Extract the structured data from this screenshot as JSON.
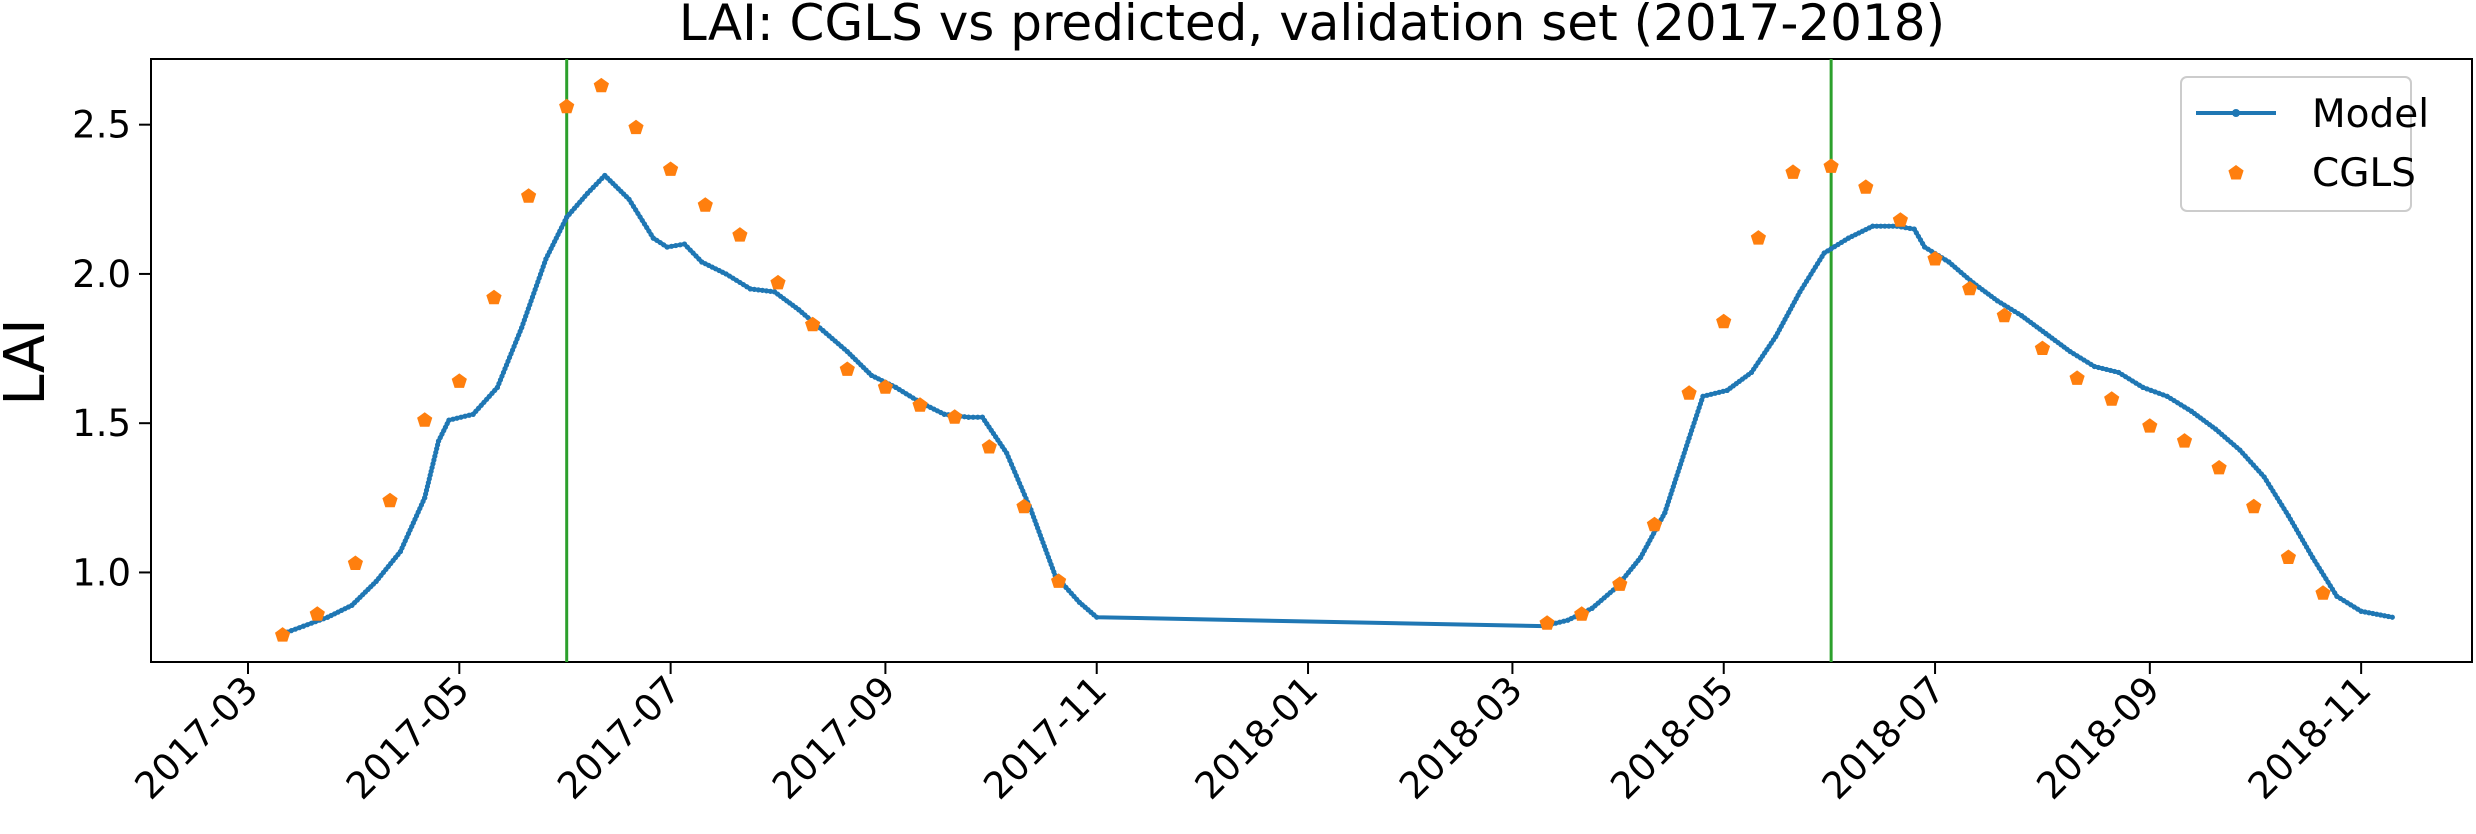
{
  "chart_data": {
    "type": "line",
    "title": "LAI: CGLS vs predicted, validation set (2017-2018)",
    "xlabel": "",
    "ylabel": "LAI",
    "xlim": [
      "2017-02-01",
      "2018-12-03"
    ],
    "ylim": [
      0.7,
      2.72
    ],
    "x_ticks": [
      "2017-03",
      "2017-05",
      "2017-07",
      "2017-09",
      "2017-11",
      "2018-01",
      "2018-03",
      "2018-05",
      "2018-07",
      "2018-09",
      "2018-11"
    ],
    "y_ticks": [
      "1.0",
      "1.5",
      "2.0",
      "2.5"
    ],
    "grid": false,
    "legend_position": "top-right",
    "vlines": {
      "color": "#2ca02c",
      "x": [
        "2017-06-01",
        "2018-06-01"
      ]
    },
    "series": [
      {
        "name": "Model",
        "style": "line-with-small-markers",
        "color": "#1f77b4",
        "points": [
          [
            "2017-03-10",
            0.79
          ],
          [
            "2017-03-17",
            0.82
          ],
          [
            "2017-03-24",
            0.85
          ],
          [
            "2017-03-31",
            0.89
          ],
          [
            "2017-04-07",
            0.97
          ],
          [
            "2017-04-14",
            1.07
          ],
          [
            "2017-04-21",
            1.25
          ],
          [
            "2017-04-25",
            1.44
          ],
          [
            "2017-04-28",
            1.51
          ],
          [
            "2017-05-05",
            1.53
          ],
          [
            "2017-05-12",
            1.62
          ],
          [
            "2017-05-19",
            1.82
          ],
          [
            "2017-05-26",
            2.05
          ],
          [
            "2017-06-01",
            2.19
          ],
          [
            "2017-06-07",
            2.27
          ],
          [
            "2017-06-12",
            2.33
          ],
          [
            "2017-06-19",
            2.25
          ],
          [
            "2017-06-26",
            2.12
          ],
          [
            "2017-06-30",
            2.09
          ],
          [
            "2017-07-05",
            2.1
          ],
          [
            "2017-07-10",
            2.04
          ],
          [
            "2017-07-17",
            2.0
          ],
          [
            "2017-07-24",
            1.95
          ],
          [
            "2017-07-31",
            1.94
          ],
          [
            "2017-08-07",
            1.88
          ],
          [
            "2017-08-14",
            1.81
          ],
          [
            "2017-08-21",
            1.74
          ],
          [
            "2017-08-28",
            1.66
          ],
          [
            "2017-09-04",
            1.62
          ],
          [
            "2017-09-11",
            1.57
          ],
          [
            "2017-09-18",
            1.53
          ],
          [
            "2017-09-25",
            1.52
          ],
          [
            "2017-09-29",
            1.52
          ],
          [
            "2017-10-06",
            1.4
          ],
          [
            "2017-10-13",
            1.21
          ],
          [
            "2017-10-20",
            0.99
          ],
          [
            "2017-10-27",
            0.9
          ],
          [
            "2017-11-01",
            0.85
          ],
          [
            "2018-03-10",
            0.82
          ],
          [
            "2018-03-17",
            0.84
          ],
          [
            "2018-03-24",
            0.88
          ],
          [
            "2018-03-31",
            0.95
          ],
          [
            "2018-04-07",
            1.05
          ],
          [
            "2018-04-14",
            1.2
          ],
          [
            "2018-04-21",
            1.45
          ],
          [
            "2018-04-25",
            1.59
          ],
          [
            "2018-05-02",
            1.61
          ],
          [
            "2018-05-09",
            1.67
          ],
          [
            "2018-05-16",
            1.79
          ],
          [
            "2018-05-23",
            1.94
          ],
          [
            "2018-05-30",
            2.07
          ],
          [
            "2018-06-06",
            2.12
          ],
          [
            "2018-06-13",
            2.16
          ],
          [
            "2018-06-20",
            2.16
          ],
          [
            "2018-06-25",
            2.15
          ],
          [
            "2018-06-28",
            2.09
          ],
          [
            "2018-07-05",
            2.04
          ],
          [
            "2018-07-12",
            1.97
          ],
          [
            "2018-07-19",
            1.91
          ],
          [
            "2018-07-26",
            1.86
          ],
          [
            "2018-08-02",
            1.8
          ],
          [
            "2018-08-09",
            1.74
          ],
          [
            "2018-08-16",
            1.69
          ],
          [
            "2018-08-23",
            1.67
          ],
          [
            "2018-08-30",
            1.62
          ],
          [
            "2018-09-06",
            1.59
          ],
          [
            "2018-09-13",
            1.54
          ],
          [
            "2018-09-20",
            1.48
          ],
          [
            "2018-09-27",
            1.41
          ],
          [
            "2018-10-04",
            1.32
          ],
          [
            "2018-10-11",
            1.19
          ],
          [
            "2018-10-18",
            1.05
          ],
          [
            "2018-10-25",
            0.92
          ],
          [
            "2018-11-01",
            0.87
          ],
          [
            "2018-11-10",
            0.85
          ]
        ]
      },
      {
        "name": "CGLS",
        "style": "pentagon-markers",
        "color": "#ff7f0e",
        "points": [
          [
            "2017-03-11",
            0.79
          ],
          [
            "2017-03-21",
            0.86
          ],
          [
            "2017-04-01",
            1.03
          ],
          [
            "2017-04-11",
            1.24
          ],
          [
            "2017-04-21",
            1.51
          ],
          [
            "2017-05-01",
            1.64
          ],
          [
            "2017-05-11",
            1.92
          ],
          [
            "2017-05-21",
            2.26
          ],
          [
            "2017-06-01",
            2.56
          ],
          [
            "2017-06-11",
            2.63
          ],
          [
            "2017-06-21",
            2.49
          ],
          [
            "2017-07-01",
            2.35
          ],
          [
            "2017-07-11",
            2.23
          ],
          [
            "2017-07-21",
            2.13
          ],
          [
            "2017-08-01",
            1.97
          ],
          [
            "2017-08-11",
            1.83
          ],
          [
            "2017-08-21",
            1.68
          ],
          [
            "2017-09-01",
            1.62
          ],
          [
            "2017-09-11",
            1.56
          ],
          [
            "2017-09-21",
            1.52
          ],
          [
            "2017-10-01",
            1.42
          ],
          [
            "2017-10-11",
            1.22
          ],
          [
            "2017-10-21",
            0.97
          ],
          [
            "2018-03-11",
            0.83
          ],
          [
            "2018-03-21",
            0.86
          ],
          [
            "2018-04-01",
            0.96
          ],
          [
            "2018-04-11",
            1.16
          ],
          [
            "2018-04-21",
            1.6
          ],
          [
            "2018-05-01",
            1.84
          ],
          [
            "2018-05-11",
            2.12
          ],
          [
            "2018-05-21",
            2.34
          ],
          [
            "2018-06-01",
            2.36
          ],
          [
            "2018-06-11",
            2.29
          ],
          [
            "2018-06-21",
            2.18
          ],
          [
            "2018-07-01",
            2.05
          ],
          [
            "2018-07-11",
            1.95
          ],
          [
            "2018-07-21",
            1.86
          ],
          [
            "2018-08-01",
            1.75
          ],
          [
            "2018-08-11",
            1.65
          ],
          [
            "2018-08-21",
            1.58
          ],
          [
            "2018-09-01",
            1.49
          ],
          [
            "2018-09-11",
            1.44
          ],
          [
            "2018-09-21",
            1.35
          ],
          [
            "2018-10-01",
            1.22
          ],
          [
            "2018-10-11",
            1.05
          ],
          [
            "2018-10-21",
            0.93
          ]
        ]
      }
    ]
  }
}
